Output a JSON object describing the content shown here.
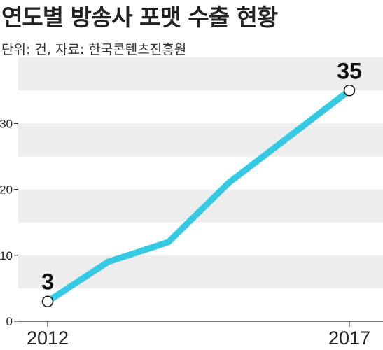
{
  "header": {
    "title": "연도별 방송사 포맷 수출 현황",
    "source": "단위: 건, 자료: 한국콘텐츠진흥원"
  },
  "colors": {
    "line": "#36C9E4",
    "band": "#EDEDED",
    "axis": "#222222",
    "marker_fill": "#FFFFFF",
    "marker_stroke": "#111111"
  },
  "chart_data": {
    "type": "line",
    "x": [
      2012,
      2013,
      2014,
      2015,
      2016,
      2017
    ],
    "x_tick_labels": [
      "2012",
      "2017"
    ],
    "series": [
      {
        "values": [
          3,
          9,
          12,
          21,
          28,
          35
        ]
      }
    ],
    "data_labels": [
      {
        "x": 2012,
        "text": "3"
      },
      {
        "x": 2017,
        "text": "35"
      }
    ],
    "y_ticks": [
      0,
      10,
      20,
      30
    ],
    "ylim": [
      0,
      35
    ],
    "grid": "alternating horizontal bands",
    "legend": "none"
  }
}
